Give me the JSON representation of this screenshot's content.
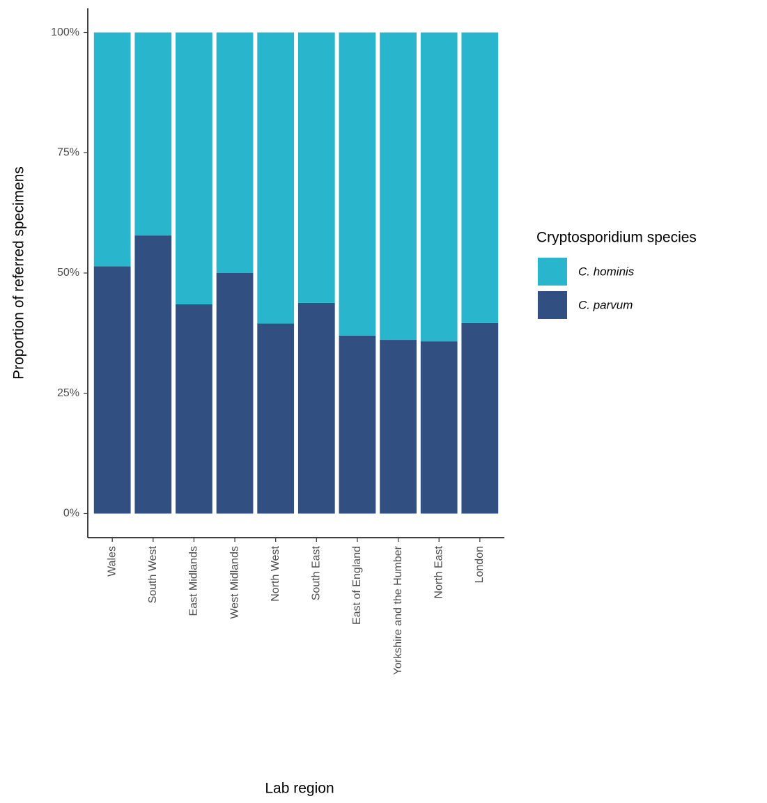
{
  "chart_data": {
    "type": "stacked_bar",
    "x_label": "Lab region",
    "y_label": "Proportion of referred specimens",
    "legend_title": "Cryptosporidium species",
    "legend_position": "right",
    "categories": [
      "Wales",
      "South West",
      "East Midlands",
      "West Midlands",
      "North West",
      "South East",
      "East of England",
      "Yorkshire and the Humber",
      "North East",
      "London"
    ],
    "series": [
      {
        "name": "C. hominis",
        "color": "#29b6cd",
        "values": [
          48.6,
          42.2,
          56.5,
          50.0,
          60.5,
          56.2,
          63.0,
          63.9,
          64.2,
          60.4
        ]
      },
      {
        "name": "C. parvum",
        "color": "#324f82",
        "values": [
          51.4,
          57.8,
          43.5,
          50.0,
          39.5,
          43.8,
          37.0,
          36.1,
          35.8,
          39.6
        ]
      }
    ],
    "ylim": [
      -5,
      105
    ],
    "yticks": [
      {
        "value": 0,
        "label": "0%"
      },
      {
        "value": 25,
        "label": "25%"
      },
      {
        "value": 50,
        "label": "50%"
      },
      {
        "value": 75,
        "label": "75%"
      },
      {
        "value": 100,
        "label": "100%"
      }
    ]
  }
}
